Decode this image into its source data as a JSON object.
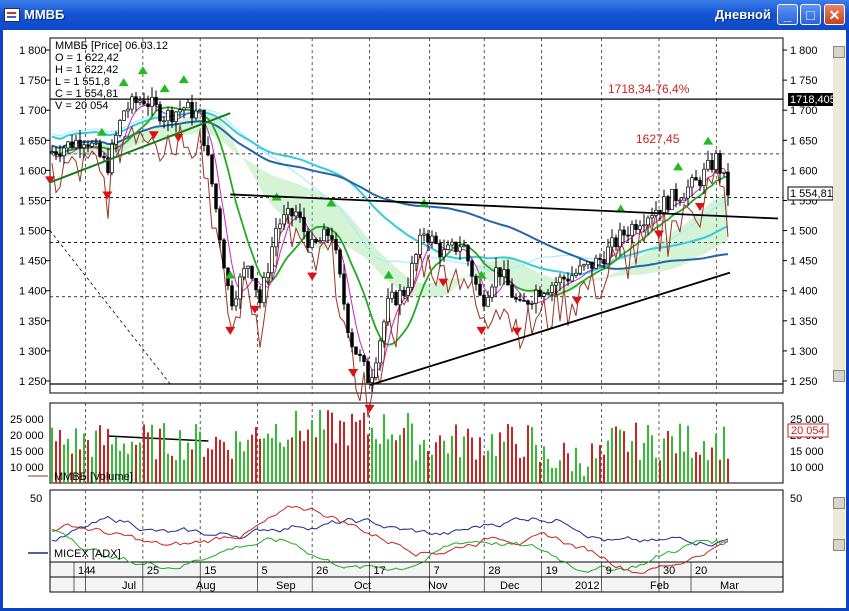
{
  "window": {
    "title": "ММВБ",
    "period": "Дневной",
    "buttons": {
      "minimize": "_",
      "maximize": "□",
      "close": "✕"
    }
  },
  "price_panel": {
    "header": "ММВБ [Price] 06.03.12",
    "ohlc": [
      "O = 1 622,42",
      "H = 1 622,42",
      "L = 1 551,8",
      "C = 1 554,81",
      "V = 20 054"
    ],
    "y_ticks": [
      "1 800",
      "1 750",
      "1 700",
      "1 650",
      "1 600",
      "1 550",
      "1 500",
      "1 450",
      "1 400",
      "1 350",
      "1 300",
      "1 250"
    ],
    "annotation_fib": "1718,34-76,4%",
    "annotation_level": "1627,45",
    "price_flag_resistance": "1718,405",
    "price_flag_last": "1 554,81",
    "colors": {
      "up_arrow": "#22bb22",
      "down_arrow": "#dd1111",
      "candle": "#000000",
      "ma_cyan": "#33ccdd",
      "ma_blue": "#2266aa",
      "ma_green": "#22aa22",
      "brown_line": "#993322",
      "magenta_line": "#cc22cc"
    }
  },
  "volume_panel": {
    "y_ticks": [
      "25 000",
      "20 000",
      "15 000",
      "10 000"
    ],
    "last_value": "20 054",
    "legend": "ММВБ [Volume]"
  },
  "adx_panel": {
    "y_tick": "50",
    "legend": "MICEX [ADX]"
  },
  "time_axis": {
    "day_labels": [
      "14",
      "4",
      "25",
      "15",
      "5",
      "26",
      "17",
      "7",
      "28",
      "19",
      "9",
      "30",
      "20"
    ],
    "month_labels": [
      "Jul",
      "Aug",
      "Sep",
      "Oct",
      "Nov",
      "Dec",
      "2012",
      "Feb",
      "Mar"
    ]
  },
  "chart_data": {
    "type": "candlestick",
    "symbol": "ММВБ",
    "date_range": [
      "2011-07-01",
      "2012-03-06"
    ],
    "ylim": [
      1230,
      1820
    ],
    "last_bar": {
      "date": "06.03.12",
      "open": 1622.42,
      "high": 1622.42,
      "low": 1551.8,
      "close": 1554.81,
      "volume": 20054
    },
    "horizontal_levels": [
      1718.405,
      1627.45,
      1554.81,
      1480,
      1390,
      1245
    ],
    "close_series": [
      {
        "date": "2011-07-01",
        "close": 1630
      },
      {
        "date": "2011-07-14",
        "close": 1655
      },
      {
        "date": "2011-07-22",
        "close": 1605
      },
      {
        "date": "2011-07-28",
        "close": 1700
      },
      {
        "date": "2011-08-04",
        "close": 1720
      },
      {
        "date": "2011-08-12",
        "close": 1690
      },
      {
        "date": "2011-08-19",
        "close": 1705
      },
      {
        "date": "2011-08-25",
        "close": 1690
      },
      {
        "date": "2011-08-30",
        "close": 1560
      },
      {
        "date": "2011-09-05",
        "close": 1380
      },
      {
        "date": "2011-09-12",
        "close": 1450
      },
      {
        "date": "2011-09-16",
        "close": 1380
      },
      {
        "date": "2011-09-22",
        "close": 1510
      },
      {
        "date": "2011-09-29",
        "close": 1530
      },
      {
        "date": "2011-10-05",
        "close": 1470
      },
      {
        "date": "2011-10-12",
        "close": 1500
      },
      {
        "date": "2011-10-19",
        "close": 1320
      },
      {
        "date": "2011-10-26",
        "close": 1250
      },
      {
        "date": "2011-11-02",
        "close": 1380
      },
      {
        "date": "2011-11-08",
        "close": 1400
      },
      {
        "date": "2011-11-15",
        "close": 1500
      },
      {
        "date": "2011-11-22",
        "close": 1460
      },
      {
        "date": "2011-11-29",
        "close": 1480
      },
      {
        "date": "2011-12-06",
        "close": 1380
      },
      {
        "date": "2011-12-12",
        "close": 1440
      },
      {
        "date": "2011-12-20",
        "close": 1370
      },
      {
        "date": "2011-12-26",
        "close": 1400
      },
      {
        "date": "2012-01-10",
        "close": 1430
      },
      {
        "date": "2012-01-18",
        "close": 1450
      },
      {
        "date": "2012-01-26",
        "close": 1490
      },
      {
        "date": "2012-02-02",
        "close": 1520
      },
      {
        "date": "2012-02-09",
        "close": 1540
      },
      {
        "date": "2012-02-16",
        "close": 1560
      },
      {
        "date": "2012-02-23",
        "close": 1580
      },
      {
        "date": "2012-03-01",
        "close": 1620
      },
      {
        "date": "2012-03-06",
        "close": 1555
      }
    ]
  }
}
